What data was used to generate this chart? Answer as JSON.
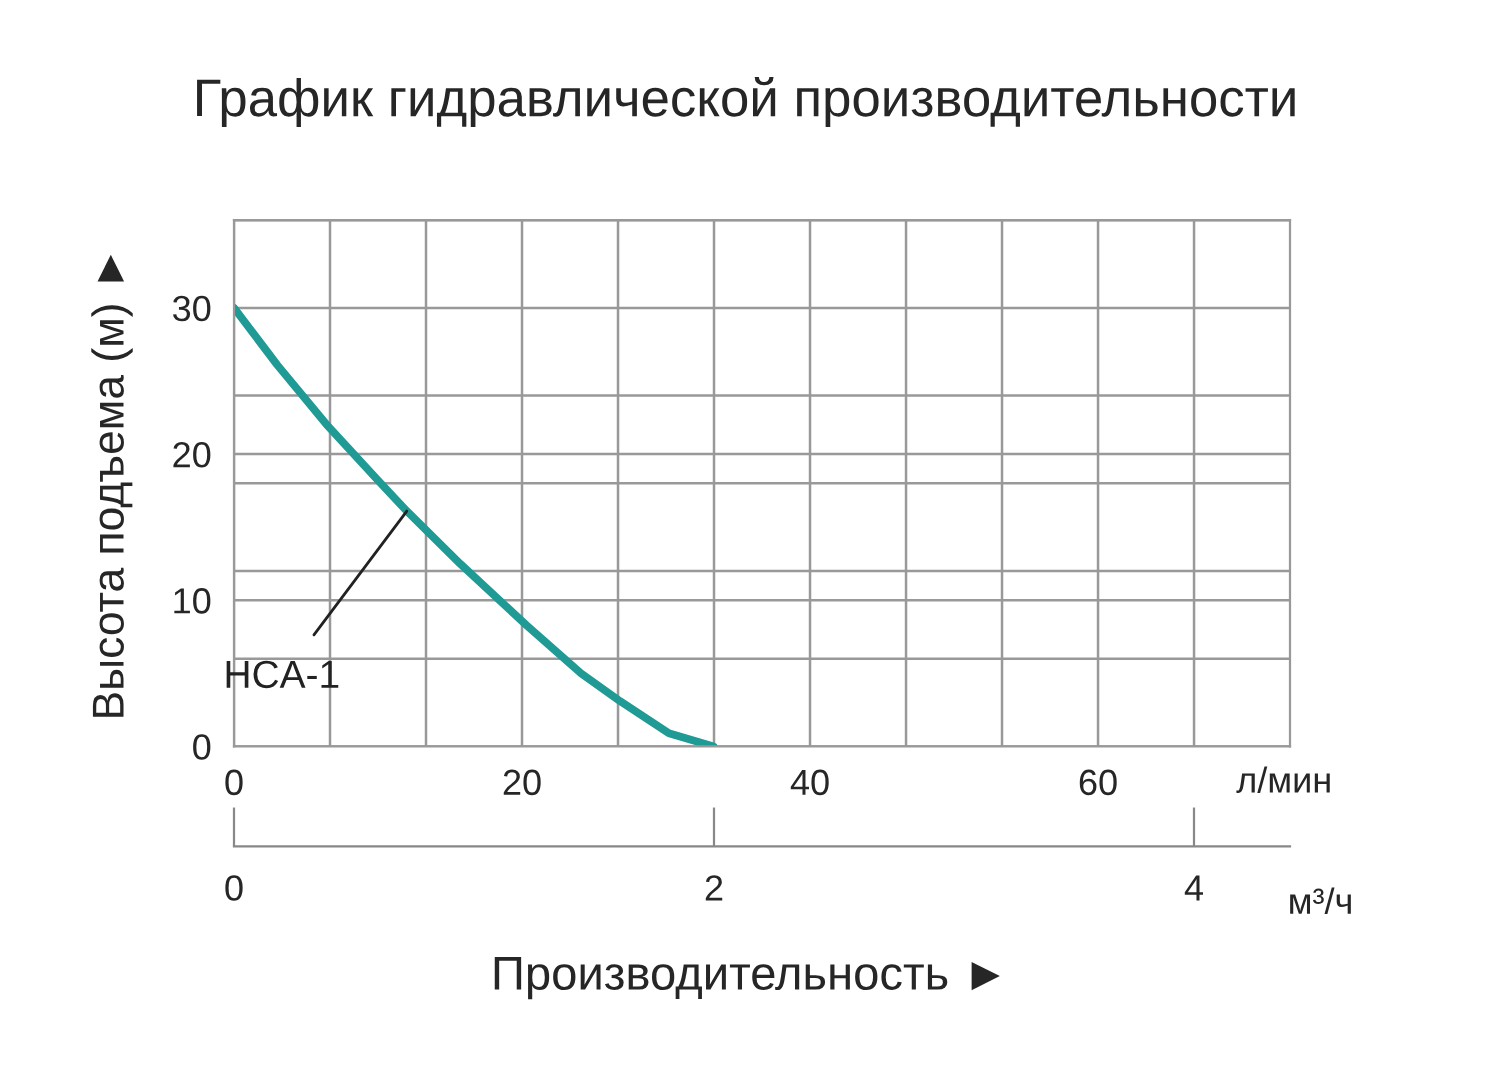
{
  "chart_data": {
    "type": "line",
    "title": "График гидравлической производительности",
    "xlabel": "л/мин",
    "x2label": "м³/ч",
    "ylabel": "Высота подъема (м) ►",
    "annotations": [
      "Производительность ►"
    ],
    "x": [
      0,
      3,
      6.4,
      10,
      12,
      15.7,
      20.3,
      24.1,
      26.8,
      30.2,
      33.3
    ],
    "series": [
      {
        "name": "HCA-1",
        "color": "#1f9a94",
        "values": [
          30,
          26.1,
          22.05,
          18.2,
          16.1,
          12.5,
          8.3,
          5.0,
          3.1,
          0.9,
          0
        ]
      }
    ],
    "xlim": [
      0,
      73.33
    ],
    "xticks": [
      0,
      {
        "value": 6.667,
        "label": null
      },
      {
        "value": 13.333,
        "label": null
      },
      20,
      {
        "value": 26.667,
        "label": null
      },
      {
        "value": 33.333,
        "label": null
      },
      40,
      {
        "value": 46.667,
        "label": null
      },
      {
        "value": 53.333,
        "label": null
      },
      60,
      {
        "value": 66.667,
        "label": null
      }
    ],
    "ylim": [
      0,
      36
    ],
    "yticks": [
      0,
      {
        "value": 6,
        "label": null
      },
      10,
      {
        "value": 12,
        "label": null
      },
      {
        "value": 18,
        "label": null
      },
      20,
      {
        "value": 24,
        "label": null
      },
      30,
      {
        "value": 36,
        "label": null
      }
    ],
    "x2lim": [
      0,
      4.4
    ],
    "x2ticks": [
      0,
      2,
      4
    ],
    "grid": true,
    "marker": "none",
    "line_style": "solid"
  }
}
